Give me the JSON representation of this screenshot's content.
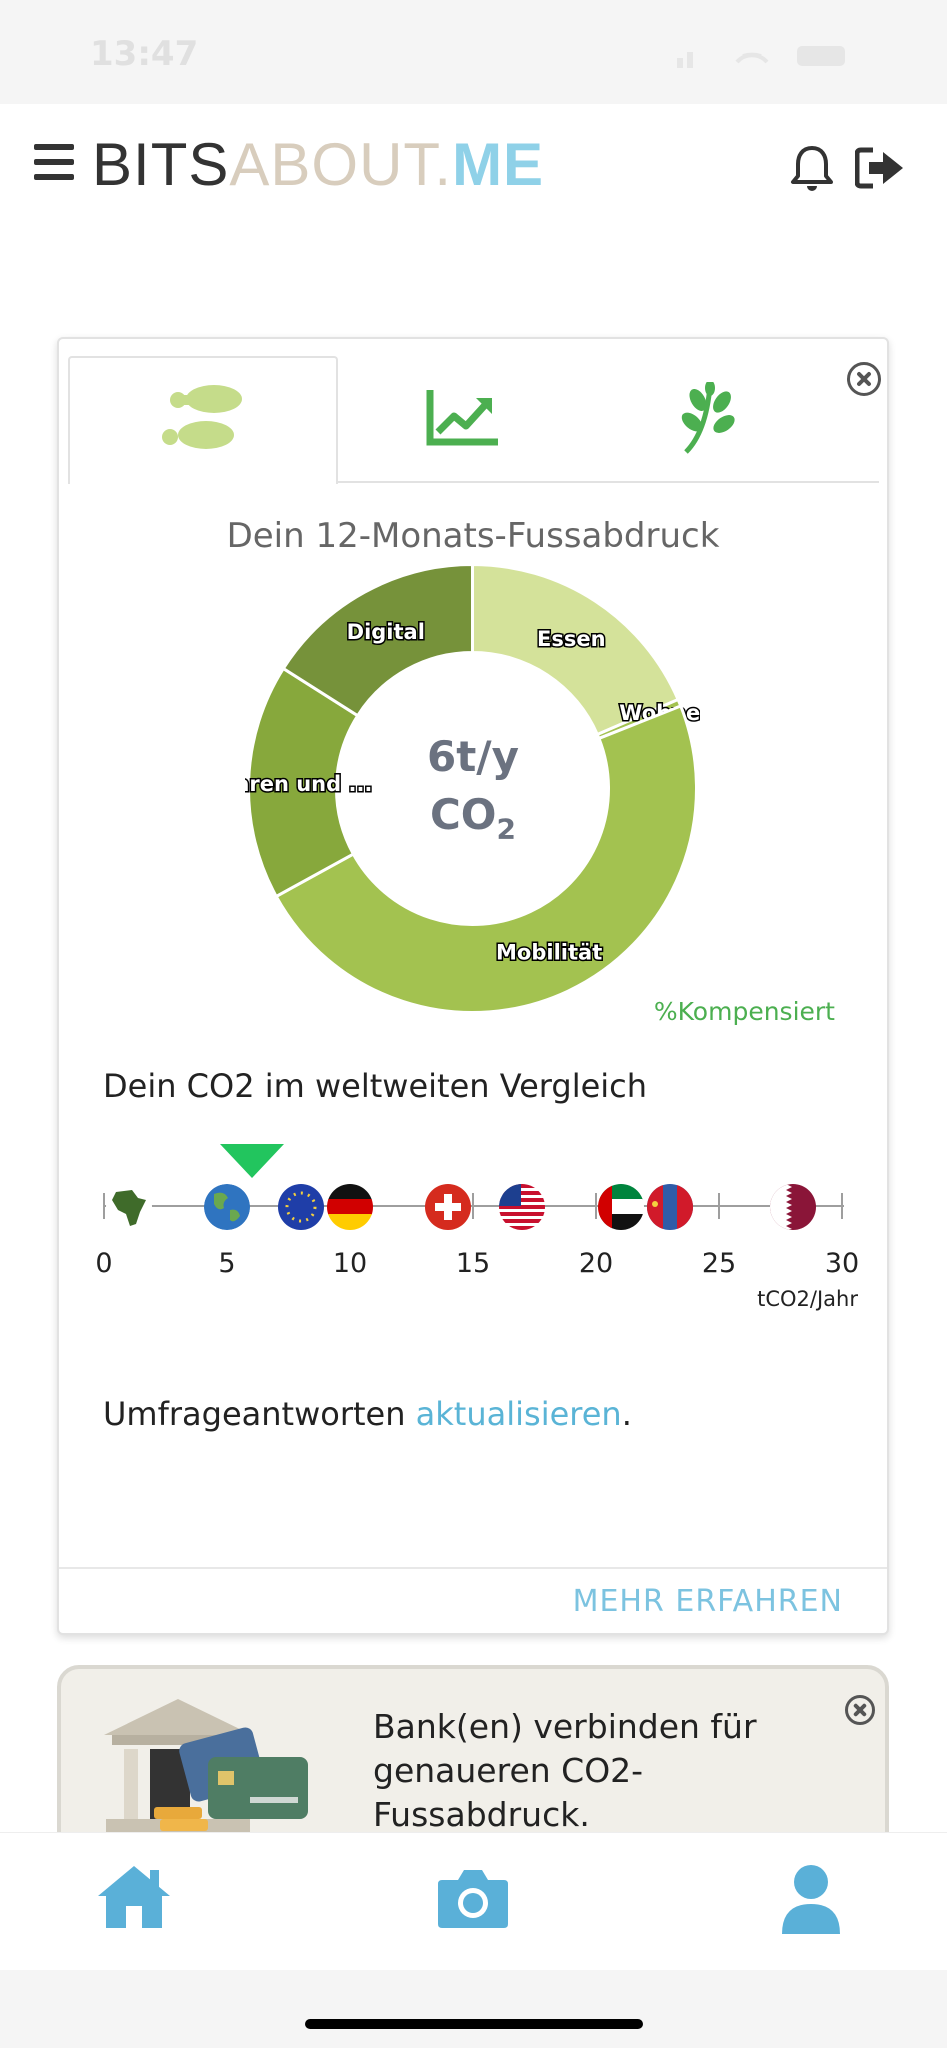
{
  "status_bar": {
    "time": "13:47"
  },
  "header": {
    "logo_part1": "BITS",
    "logo_part2": "ABOUT.",
    "logo_part3": "ME"
  },
  "tabs": [
    {
      "icon": "footprint-icon",
      "active": true
    },
    {
      "icon": "trending-chart-icon",
      "active": false
    },
    {
      "icon": "plant-icon",
      "active": false
    }
  ],
  "footprint": {
    "title": "Dein 12-Monats-Fussabdruck",
    "center_value": "6t/y",
    "center_unit": "CO",
    "center_sub": "2",
    "compensated_label": "%Kompensiert"
  },
  "chart_data": {
    "type": "pie",
    "donut": true,
    "categories": [
      "Essen",
      "Wohnen",
      "Mobilität",
      "Waren und ...",
      "Digital"
    ],
    "values": [
      18.5,
      0.5,
      48,
      17,
      16
    ],
    "colors": [
      "#d4e29a",
      "#a3c250",
      "#a3c250",
      "#87a83c",
      "#76923a"
    ]
  },
  "comparison": {
    "title": "Dein CO2 im weltweiten Vergleich",
    "scale_ticks": [
      0,
      5,
      10,
      15,
      20,
      25,
      30
    ],
    "unit": "tCO2/Jahr",
    "your_value": 6,
    "flags": [
      {
        "name": "africa",
        "value": 1
      },
      {
        "name": "world",
        "value": 5
      },
      {
        "name": "eu",
        "value": 8
      },
      {
        "name": "germany",
        "value": 10
      },
      {
        "name": "switzerland",
        "value": 14
      },
      {
        "name": "usa",
        "value": 17
      },
      {
        "name": "uae",
        "value": 21
      },
      {
        "name": "mongolia",
        "value": 23
      },
      {
        "name": "qatar",
        "value": 28
      }
    ]
  },
  "survey": {
    "text": "Umfrageantworten ",
    "link": "aktualisieren",
    "suffix": "."
  },
  "more_button": "MEHR ERFAHREN",
  "bank_card": {
    "text": "Bank(en) verbinden für genaueren CO2-Fussabdruck."
  },
  "bottom_nav": [
    "home-icon",
    "camera-icon",
    "profile-icon"
  ]
}
